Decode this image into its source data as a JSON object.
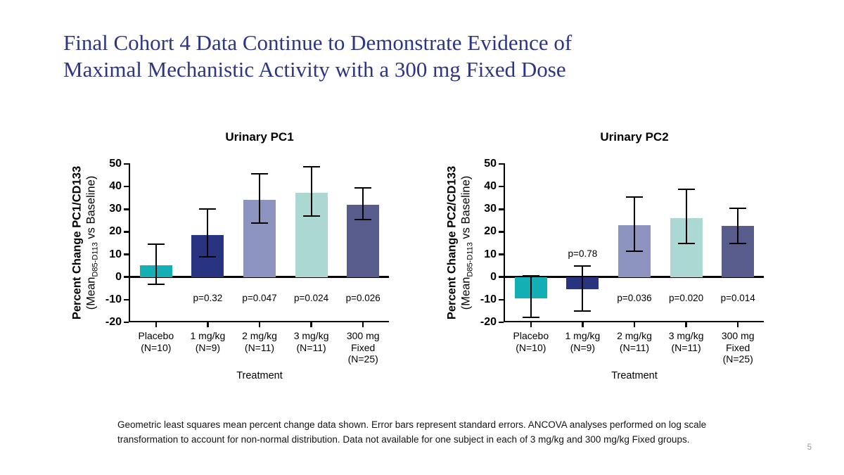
{
  "slide": {
    "title_line1": "Final Cohort 4 Data Continue to Demonstrate Evidence of",
    "title_line2": "Maximal Mechanistic Activity with a 300 mg Fixed Dose",
    "title_color": "#2C3586",
    "footnote_line1": "Geometric least squares mean percent change data shown. Error bars represent standard errors. ANCOVA analyses performed on log scale",
    "footnote_line2": "transformation to account for non-normal distribution. Data not available for one subject in each of 3 mg/kg and 300 mg/kg Fixed groups.",
    "page_number": "5"
  },
  "chart_data": [
    {
      "type": "bar",
      "title": "Urinary PC1",
      "ylabel": {
        "line1": "Percent Change PC1/CD133",
        "prefix": "(Mean",
        "sub": "D85-D113",
        "suffix": " vs Baseline)"
      },
      "xlabel": "Treatment",
      "ylim": [
        -20,
        50
      ],
      "yticks": [
        -20,
        -10,
        0,
        10,
        20,
        30,
        40,
        50
      ],
      "grid": false,
      "legend": null,
      "categories": [
        [
          "Placebo",
          "(N=10)"
        ],
        [
          "1 mg/kg",
          "(N=9)"
        ],
        [
          "2 mg/kg",
          "(N=11)"
        ],
        [
          "3 mg/kg",
          "(N=11)"
        ],
        [
          "300 mg",
          "Fixed",
          "(N=25)"
        ]
      ],
      "values": [
        5.3,
        18.7,
        34.0,
        37.3,
        32.0
      ],
      "err_low": [
        -3.3,
        9.0,
        24.0,
        27.0,
        25.5
      ],
      "err_high": [
        14.5,
        30.0,
        45.5,
        48.8,
        39.3
      ],
      "bar_colors": [
        "#14AFB5",
        "#28347F",
        "#8B93BE",
        "#ABD8D2",
        "#585C8C"
      ],
      "p_values": [
        null,
        "p=0.32",
        "p=0.047",
        "p=0.024",
        "p=0.026"
      ],
      "p_y": [
        null,
        -9.5,
        -9.5,
        -9.5,
        -9.5
      ]
    },
    {
      "type": "bar",
      "title": "Urinary PC2",
      "ylabel": {
        "line1": "Percent Change PC2/CD133",
        "prefix": "(Mean",
        "sub": "D85-D113",
        "suffix": " vs Baseline)"
      },
      "xlabel": "Treatment",
      "ylim": [
        -20,
        50
      ],
      "yticks": [
        -20,
        -10,
        0,
        10,
        20,
        30,
        40,
        50
      ],
      "grid": false,
      "legend": null,
      "categories": [
        [
          "Placebo",
          "(N=10)"
        ],
        [
          "1 mg/kg",
          "(N=9)"
        ],
        [
          "2 mg/kg",
          "(N=11)"
        ],
        [
          "3 mg/kg",
          "(N=11)"
        ],
        [
          "300 mg",
          "Fixed",
          "(N=25)"
        ]
      ],
      "values": [
        -9.5,
        -5.5,
        22.8,
        26.0,
        22.5
      ],
      "err_low": [
        -17.8,
        -15.0,
        11.4,
        15.0,
        15.0
      ],
      "err_high": [
        0.5,
        4.8,
        35.5,
        38.8,
        30.5
      ],
      "bar_colors": [
        "#14AFB5",
        "#28347F",
        "#8B93BE",
        "#ABD8D2",
        "#585C8C"
      ],
      "p_values": [
        null,
        "p=0.78",
        "p=0.036",
        "p=0.020",
        "p=0.014"
      ],
      "p_y": [
        null,
        10.3,
        -9.5,
        -9.5,
        -9.5
      ]
    }
  ]
}
